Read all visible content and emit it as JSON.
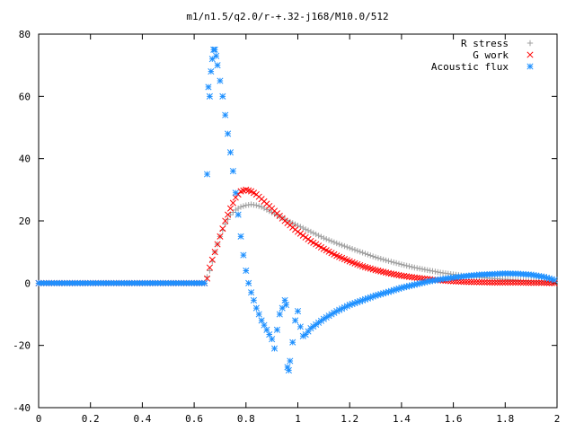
{
  "chart_data": {
    "type": "scatter",
    "title": "m1/n1.5/q2.0/r-+.32-j168/M10.0/512",
    "xlabel": "",
    "ylabel": "",
    "xlim": [
      0,
      2
    ],
    "ylim": [
      -40,
      80
    ],
    "x_ticks": [
      "0",
      "0.2",
      "0.4",
      "0.6",
      "0.8",
      "1",
      "1.2",
      "1.4",
      "1.6",
      "1.8",
      "2"
    ],
    "y_ticks": [
      "80",
      "60",
      "40",
      "20",
      "0",
      "-20",
      "-40"
    ],
    "grid": false,
    "legend_position": "top-right",
    "series": [
      {
        "name": "R stress",
        "marker": "plus",
        "color": "#a0a0a0",
        "points": [
          [
            0.0,
            0
          ],
          [
            0.1,
            0
          ],
          [
            0.2,
            0
          ],
          [
            0.3,
            0
          ],
          [
            0.4,
            0
          ],
          [
            0.5,
            0
          ],
          [
            0.6,
            0
          ],
          [
            0.64,
            0
          ],
          [
            0.66,
            4
          ],
          [
            0.68,
            10
          ],
          [
            0.7,
            15
          ],
          [
            0.72,
            19
          ],
          [
            0.74,
            22
          ],
          [
            0.76,
            23.5
          ],
          [
            0.78,
            24.5
          ],
          [
            0.8,
            25
          ],
          [
            0.82,
            25.3
          ],
          [
            0.84,
            25
          ],
          [
            0.86,
            24.5
          ],
          [
            0.88,
            23.6
          ],
          [
            0.9,
            22.7
          ],
          [
            0.95,
            20.5
          ],
          [
            1.0,
            18.5
          ],
          [
            1.05,
            16.5
          ],
          [
            1.1,
            14.5
          ],
          [
            1.15,
            12.8
          ],
          [
            1.2,
            11.3
          ],
          [
            1.25,
            9.8
          ],
          [
            1.3,
            8.3
          ],
          [
            1.35,
            7.1
          ],
          [
            1.4,
            6
          ],
          [
            1.45,
            5
          ],
          [
            1.5,
            4.2
          ],
          [
            1.55,
            3.4
          ],
          [
            1.6,
            2.8
          ],
          [
            1.65,
            2.3
          ],
          [
            1.7,
            1.9
          ],
          [
            1.75,
            1.5
          ],
          [
            1.8,
            1.2
          ],
          [
            1.85,
            0.9
          ],
          [
            1.9,
            0.7
          ],
          [
            1.95,
            0.4
          ],
          [
            1.99,
            0.2
          ]
        ]
      },
      {
        "name": "G work",
        "marker": "cross",
        "color": "#ff0000",
        "points": [
          [
            0.0,
            0
          ],
          [
            0.1,
            0
          ],
          [
            0.2,
            0
          ],
          [
            0.3,
            0
          ],
          [
            0.4,
            0
          ],
          [
            0.5,
            0
          ],
          [
            0.6,
            0
          ],
          [
            0.64,
            0
          ],
          [
            0.65,
            1.5
          ],
          [
            0.66,
            5
          ],
          [
            0.68,
            10
          ],
          [
            0.7,
            15
          ],
          [
            0.72,
            20
          ],
          [
            0.74,
            24
          ],
          [
            0.76,
            27.5
          ],
          [
            0.78,
            29.5
          ],
          [
            0.8,
            30
          ],
          [
            0.82,
            29.5
          ],
          [
            0.84,
            28.5
          ],
          [
            0.86,
            27
          ],
          [
            0.88,
            25.5
          ],
          [
            0.9,
            24
          ],
          [
            0.95,
            20
          ],
          [
            1.0,
            16.5
          ],
          [
            1.05,
            13.5
          ],
          [
            1.1,
            11
          ],
          [
            1.15,
            8.8
          ],
          [
            1.2,
            7
          ],
          [
            1.25,
            5.4
          ],
          [
            1.3,
            4.2
          ],
          [
            1.35,
            3.2
          ],
          [
            1.4,
            2.4
          ],
          [
            1.45,
            1.8
          ],
          [
            1.5,
            1.3
          ],
          [
            1.55,
            0.9
          ],
          [
            1.6,
            0.6
          ],
          [
            1.65,
            0.4
          ],
          [
            1.7,
            0.3
          ],
          [
            1.75,
            0.2
          ],
          [
            1.8,
            0.2
          ],
          [
            1.85,
            0.2
          ],
          [
            1.9,
            0.1
          ],
          [
            1.95,
            0.1
          ],
          [
            1.99,
            0
          ]
        ]
      },
      {
        "name": "Acoustic flux",
        "marker": "star",
        "color": "#1e90ff",
        "points": [
          [
            0.0,
            0
          ],
          [
            0.1,
            0
          ],
          [
            0.2,
            0
          ],
          [
            0.3,
            0
          ],
          [
            0.4,
            0
          ],
          [
            0.5,
            0
          ],
          [
            0.6,
            0
          ],
          [
            0.64,
            0
          ],
          [
            0.65,
            35
          ],
          [
            0.655,
            63
          ],
          [
            0.66,
            60
          ],
          [
            0.665,
            68
          ],
          [
            0.67,
            72
          ],
          [
            0.675,
            75
          ],
          [
            0.68,
            75
          ],
          [
            0.685,
            73
          ],
          [
            0.69,
            70
          ],
          [
            0.7,
            65
          ],
          [
            0.71,
            60
          ],
          [
            0.72,
            54
          ],
          [
            0.73,
            48
          ],
          [
            0.74,
            42
          ],
          [
            0.75,
            36
          ],
          [
            0.76,
            29
          ],
          [
            0.77,
            22
          ],
          [
            0.78,
            15
          ],
          [
            0.79,
            9
          ],
          [
            0.8,
            4
          ],
          [
            0.81,
            0
          ],
          [
            0.82,
            -3
          ],
          [
            0.84,
            -8
          ],
          [
            0.86,
            -12
          ],
          [
            0.88,
            -15
          ],
          [
            0.9,
            -18
          ],
          [
            0.91,
            -21
          ],
          [
            0.92,
            -15
          ],
          [
            0.93,
            -10
          ],
          [
            0.94,
            -8
          ],
          [
            0.95,
            -5.5
          ],
          [
            0.955,
            -7
          ],
          [
            0.96,
            -27
          ],
          [
            0.965,
            -28
          ],
          [
            0.97,
            -25
          ],
          [
            0.98,
            -19
          ],
          [
            0.99,
            -12
          ],
          [
            1.0,
            -9
          ],
          [
            1.01,
            -14
          ],
          [
            1.02,
            -17
          ],
          [
            1.03,
            -16.5
          ],
          [
            1.05,
            -14.5
          ],
          [
            1.1,
            -11.5
          ],
          [
            1.15,
            -9
          ],
          [
            1.2,
            -7
          ],
          [
            1.25,
            -5.5
          ],
          [
            1.3,
            -4
          ],
          [
            1.35,
            -2.8
          ],
          [
            1.4,
            -1.5
          ],
          [
            1.45,
            -0.5
          ],
          [
            1.5,
            0.5
          ],
          [
            1.55,
            1.2
          ],
          [
            1.6,
            1.8
          ],
          [
            1.65,
            2.3
          ],
          [
            1.7,
            2.7
          ],
          [
            1.75,
            2.9
          ],
          [
            1.8,
            3.1
          ],
          [
            1.85,
            3
          ],
          [
            1.9,
            2.7
          ],
          [
            1.95,
            2
          ],
          [
            1.99,
            1
          ]
        ]
      }
    ]
  }
}
